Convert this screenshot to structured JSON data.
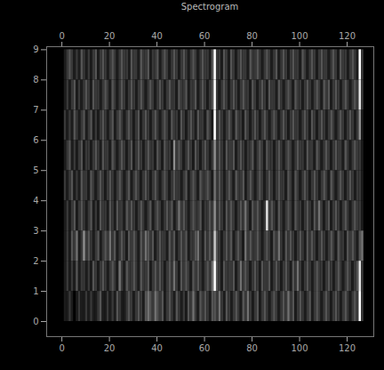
{
  "chart_data": {
    "type": "heatmap",
    "title": "Spectrogram",
    "xlim": [
      -6.4,
      131.2
    ],
    "ylim": [
      -0.5,
      9.1
    ],
    "xticks": [
      0,
      20,
      40,
      60,
      80,
      100,
      120
    ],
    "yticks": [
      0,
      1,
      2,
      3,
      4,
      5,
      6,
      7,
      8,
      9
    ],
    "zlim": [
      0,
      9
    ],
    "x_edges": [
      1,
      2,
      3,
      4,
      5,
      6,
      7,
      8,
      9,
      10,
      11,
      12,
      13,
      14,
      15,
      16,
      17,
      18,
      19,
      20,
      21,
      22,
      23,
      24,
      25,
      26,
      27,
      28,
      29,
      30,
      31,
      32,
      33,
      34,
      35,
      36,
      37,
      38,
      39,
      40,
      41,
      42,
      43,
      44,
      45,
      46,
      47,
      48,
      49,
      50,
      51,
      52,
      53,
      54,
      55,
      56,
      57,
      58,
      59,
      60,
      61,
      62,
      63,
      64,
      65,
      66,
      67,
      68,
      69,
      70,
      71,
      72,
      73,
      74,
      75,
      76,
      77,
      78,
      79,
      80,
      81,
      82,
      83,
      84,
      85,
      86,
      87,
      88,
      89,
      90,
      91,
      92,
      93,
      94,
      95,
      96,
      97,
      98,
      99,
      100,
      101,
      102,
      103,
      104,
      105,
      106,
      107,
      108,
      109,
      110,
      111,
      112,
      113,
      114,
      115,
      116,
      117,
      118,
      119,
      120,
      121,
      122,
      123,
      124,
      125,
      126,
      127
    ],
    "y_edges": [
      0,
      1,
      2,
      3,
      4,
      5,
      6,
      7,
      8,
      9
    ],
    "cells": [
      [
        1,
        1,
        2,
        1,
        0,
        1,
        2,
        1,
        1,
        2,
        1,
        2,
        1,
        1,
        2,
        3,
        1,
        1,
        2,
        1,
        2,
        1,
        3,
        2,
        1,
        1,
        2,
        3,
        2,
        1,
        2,
        3,
        2,
        1,
        3,
        4,
        3,
        2,
        4,
        3,
        2,
        3,
        1,
        2,
        3,
        2,
        1,
        3,
        2,
        1,
        2,
        1,
        3,
        2,
        4,
        2,
        1,
        3,
        2,
        3,
        2,
        1,
        3,
        3,
        2,
        4,
        2,
        1,
        3,
        2,
        1,
        2,
        3,
        2,
        1,
        3,
        2,
        4,
        2,
        1,
        2,
        3,
        1,
        2,
        3,
        2,
        1,
        2,
        3,
        2,
        1,
        2,
        3,
        2,
        4,
        2,
        3,
        1,
        2,
        3,
        2,
        1,
        2,
        3,
        1,
        2,
        3,
        2,
        1,
        2,
        3,
        2,
        1,
        2,
        3,
        2,
        1,
        2,
        3,
        2,
        1,
        2,
        3,
        2,
        9,
        2
      ],
      [
        1,
        2,
        1,
        2,
        1,
        3,
        1,
        2,
        2,
        1,
        2,
        1,
        3,
        2,
        1,
        2,
        3,
        2,
        1,
        2,
        3,
        2,
        1,
        4,
        2,
        1,
        3,
        2,
        2,
        3,
        2,
        1,
        3,
        2,
        2,
        3,
        1,
        2,
        3,
        2,
        3,
        2,
        1,
        2,
        3,
        2,
        4,
        2,
        1,
        3,
        2,
        3,
        2,
        1,
        3,
        2,
        3,
        2,
        1,
        2,
        3,
        2,
        4,
        9,
        3,
        2,
        1,
        3,
        2,
        2,
        2,
        3,
        1,
        2,
        4,
        2,
        3,
        2,
        1,
        2,
        3,
        2,
        1,
        3,
        2,
        2,
        3,
        1,
        2,
        3,
        2,
        1,
        2,
        3,
        2,
        1,
        3,
        2,
        4,
        2,
        1,
        2,
        3,
        2,
        1,
        2,
        3,
        2,
        2,
        1,
        2,
        3,
        2,
        1,
        2,
        3,
        2,
        1,
        2,
        3,
        2,
        1,
        2,
        3,
        8,
        2
      ],
      [
        1,
        2,
        1,
        3,
        2,
        4,
        1,
        2,
        5,
        2,
        3,
        2,
        1,
        2,
        3,
        1,
        2,
        3,
        2,
        4,
        2,
        3,
        1,
        2,
        3,
        2,
        1,
        3,
        2,
        3,
        2,
        1,
        3,
        2,
        4,
        3,
        2,
        3,
        1,
        2,
        3,
        2,
        2,
        1,
        3,
        2,
        3,
        1,
        2,
        3,
        2,
        3,
        1,
        2,
        2,
        3,
        4,
        2,
        1,
        3,
        2,
        3,
        2,
        7,
        3,
        2,
        1,
        2,
        3,
        2,
        3,
        1,
        2,
        3,
        2,
        1,
        4,
        2,
        3,
        2,
        2,
        3,
        2,
        1,
        2,
        3,
        2,
        1,
        3,
        2,
        4,
        2,
        1,
        3,
        2,
        3,
        2,
        1,
        2,
        3,
        2,
        1,
        3,
        2,
        3,
        2,
        1,
        2,
        3,
        2,
        1,
        2,
        3,
        2,
        1,
        3,
        2,
        2,
        1,
        3,
        2,
        3,
        2,
        1,
        3,
        4
      ],
      [
        1,
        2,
        1,
        2,
        3,
        1,
        2,
        3,
        2,
        1,
        2,
        3,
        1,
        2,
        1,
        3,
        2,
        2,
        1,
        3,
        2,
        1,
        3,
        2,
        2,
        1,
        3,
        2,
        3,
        2,
        1,
        2,
        3,
        2,
        1,
        2,
        3,
        1,
        2,
        3,
        2,
        1,
        2,
        3,
        2,
        3,
        1,
        2,
        4,
        2,
        3,
        2,
        1,
        2,
        3,
        2,
        2,
        3,
        1,
        2,
        2,
        3,
        2,
        5,
        2,
        3,
        2,
        1,
        3,
        2,
        3,
        2,
        1,
        2,
        3,
        2,
        4,
        2,
        1,
        3,
        2,
        3,
        2,
        1,
        2,
        8,
        2,
        3,
        2,
        1,
        3,
        2,
        1,
        2,
        3,
        2,
        1,
        3,
        2,
        2,
        1,
        2,
        3,
        2,
        1,
        3,
        2,
        4,
        2,
        1,
        2,
        3,
        1,
        2,
        3,
        2,
        1,
        2,
        3,
        2,
        1,
        2,
        3,
        2,
        2,
        1
      ],
      [
        2,
        1,
        2,
        3,
        1,
        2,
        1,
        3,
        2,
        2,
        1,
        3,
        2,
        1,
        2,
        3,
        2,
        1,
        2,
        3,
        2,
        1,
        2,
        3,
        2,
        1,
        2,
        3,
        1,
        2,
        3,
        2,
        1,
        2,
        3,
        2,
        1,
        2,
        3,
        2,
        1,
        2,
        3,
        2,
        1,
        2,
        3,
        2,
        2,
        1,
        2,
        3,
        1,
        2,
        3,
        2,
        1,
        3,
        2,
        2,
        3,
        2,
        1,
        4,
        2,
        3,
        2,
        1,
        2,
        3,
        2,
        1,
        3,
        2,
        2,
        3,
        1,
        2,
        3,
        2,
        1,
        2,
        3,
        2,
        1,
        2,
        3,
        2,
        1,
        2,
        3,
        2,
        2,
        1,
        3,
        2,
        1,
        3,
        2,
        1,
        2,
        3,
        2,
        1,
        2,
        3,
        2,
        1,
        2,
        3,
        2,
        1,
        3,
        2,
        1,
        2,
        3,
        2,
        1,
        2,
        3,
        2,
        1,
        2,
        2,
        1
      ],
      [
        1,
        2,
        3,
        1,
        2,
        1,
        2,
        3,
        1,
        2,
        2,
        1,
        2,
        3,
        2,
        1,
        3,
        2,
        2,
        1,
        3,
        2,
        1,
        2,
        3,
        2,
        1,
        2,
        3,
        1,
        2,
        3,
        2,
        1,
        2,
        3,
        2,
        2,
        1,
        3,
        2,
        1,
        3,
        2,
        2,
        1,
        5,
        2,
        3,
        2,
        1,
        2,
        3,
        2,
        1,
        3,
        2,
        1,
        2,
        3,
        2,
        1,
        2,
        5,
        2,
        3,
        2,
        1,
        3,
        2,
        2,
        3,
        1,
        2,
        3,
        2,
        1,
        2,
        2,
        3,
        1,
        2,
        3,
        2,
        1,
        3,
        2,
        2,
        1,
        2,
        3,
        2,
        1,
        2,
        3,
        2,
        1,
        2,
        3,
        2,
        2,
        1,
        3,
        2,
        2,
        1,
        3,
        2,
        1,
        2,
        3,
        2,
        1,
        2,
        3,
        2,
        2,
        1,
        3,
        2,
        1,
        2,
        3,
        2,
        2,
        1
      ],
      [
        2,
        1,
        2,
        1,
        3,
        2,
        1,
        2,
        3,
        1,
        2,
        3,
        1,
        2,
        1,
        2,
        3,
        2,
        1,
        2,
        3,
        1,
        2,
        3,
        2,
        1,
        2,
        3,
        2,
        1,
        2,
        3,
        1,
        2,
        3,
        2,
        1,
        2,
        3,
        2,
        1,
        2,
        3,
        2,
        1,
        3,
        2,
        2,
        1,
        3,
        2,
        1,
        2,
        3,
        2,
        1,
        3,
        2,
        2,
        1,
        3,
        2,
        1,
        9,
        2,
        3,
        2,
        1,
        2,
        3,
        2,
        1,
        3,
        2,
        2,
        1,
        3,
        2,
        1,
        2,
        3,
        2,
        1,
        2,
        3,
        2,
        1,
        2,
        3,
        2,
        1,
        2,
        3,
        2,
        1,
        2,
        3,
        2,
        2,
        1,
        2,
        3,
        2,
        1,
        3,
        2,
        1,
        2,
        3,
        2,
        1,
        2,
        3,
        2,
        1,
        2,
        3,
        2,
        1,
        2,
        3,
        2,
        1,
        2,
        5,
        1
      ],
      [
        1,
        2,
        1,
        2,
        3,
        1,
        2,
        1,
        2,
        3,
        2,
        1,
        3,
        2,
        2,
        1,
        2,
        3,
        2,
        1,
        3,
        2,
        1,
        2,
        3,
        2,
        1,
        2,
        3,
        2,
        1,
        2,
        3,
        2,
        1,
        2,
        3,
        2,
        1,
        2,
        3,
        2,
        1,
        2,
        3,
        2,
        2,
        1,
        3,
        2,
        2,
        3,
        1,
        2,
        2,
        3,
        1,
        2,
        3,
        2,
        1,
        2,
        3,
        9,
        2,
        1,
        2,
        3,
        2,
        1,
        2,
        3,
        2,
        1,
        2,
        3,
        2,
        2,
        1,
        3,
        2,
        1,
        2,
        3,
        2,
        1,
        3,
        2,
        2,
        1,
        3,
        2,
        1,
        2,
        3,
        2,
        1,
        3,
        2,
        2,
        1,
        2,
        3,
        2,
        1,
        2,
        3,
        2,
        1,
        3,
        2,
        3,
        1,
        2,
        3,
        2,
        1,
        2,
        3,
        2,
        1,
        2,
        3,
        2,
        8,
        2
      ],
      [
        1,
        2,
        3,
        2,
        1,
        2,
        1,
        3,
        2,
        1,
        2,
        1,
        2,
        3,
        1,
        2,
        3,
        2,
        1,
        2,
        3,
        2,
        1,
        2,
        3,
        2,
        2,
        1,
        3,
        2,
        2,
        1,
        3,
        2,
        2,
        3,
        1,
        2,
        2,
        3,
        1,
        2,
        3,
        2,
        1,
        2,
        3,
        2,
        1,
        2,
        3,
        2,
        1,
        2,
        3,
        2,
        1,
        2,
        3,
        2,
        2,
        1,
        3,
        9,
        2,
        2,
        1,
        3,
        2,
        1,
        3,
        2,
        1,
        2,
        3,
        2,
        2,
        1,
        3,
        2,
        2,
        3,
        2,
        1,
        2,
        3,
        2,
        1,
        2,
        3,
        1,
        2,
        3,
        2,
        1,
        2,
        3,
        2,
        2,
        1,
        3,
        2,
        1,
        2,
        3,
        2,
        1,
        2,
        3,
        2,
        2,
        1,
        2,
        3,
        2,
        1,
        3,
        2,
        2,
        1,
        2,
        3,
        2,
        1,
        9,
        2
      ]
    ]
  }
}
